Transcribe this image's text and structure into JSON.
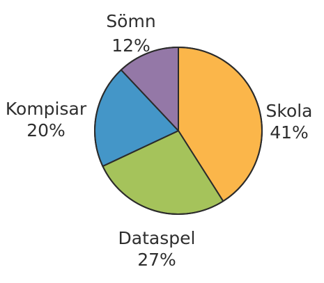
{
  "chart_data": {
    "type": "pie",
    "title": "",
    "slices": [
      {
        "label": "Skola",
        "value": 41,
        "display": "41%",
        "color": "#fbb64a"
      },
      {
        "label": "Dataspel",
        "value": 27,
        "display": "27%",
        "color": "#a5c35b"
      },
      {
        "label": "Kompisar",
        "value": 20,
        "display": "20%",
        "color": "#4496c8"
      },
      {
        "label": "Sömn",
        "value": 12,
        "display": "12%",
        "color": "#9478a7"
      }
    ],
    "start_angle_deg": 0,
    "direction": "clockwise",
    "legend": "none"
  }
}
